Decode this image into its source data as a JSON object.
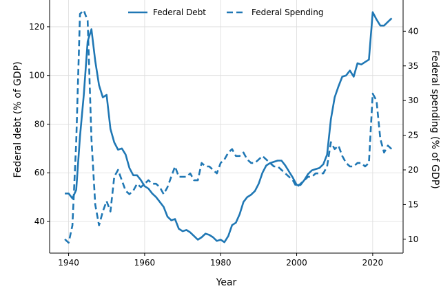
{
  "chart_data": {
    "type": "line",
    "xlabel": "Year",
    "ylabel_left": "Federal debt (% of GDP)",
    "ylabel_right": "Federal spending (% of GDP)",
    "xlim": [
      1935,
      2028
    ],
    "ylim_left": [
      27,
      131
    ],
    "ylim_right": [
      8,
      44.5
    ],
    "xticks": [
      1940,
      1960,
      1980,
      2000,
      2020
    ],
    "yticks_left": [
      40,
      60,
      80,
      100,
      120
    ],
    "yticks_right": [
      10,
      15,
      20,
      25,
      30,
      35,
      40
    ],
    "grid": true,
    "legend": "top-center",
    "series": [
      {
        "name": "Federal Debt",
        "axis": "left",
        "style": "solid",
        "color": "#1f77b4",
        "x": [
          1939,
          1940,
          1941,
          1942,
          1943,
          1944,
          1945,
          1946,
          1947,
          1948,
          1949,
          1950,
          1951,
          1952,
          1953,
          1954,
          1955,
          1956,
          1957,
          1958,
          1959,
          1960,
          1961,
          1962,
          1963,
          1964,
          1965,
          1966,
          1967,
          1968,
          1969,
          1970,
          1971,
          1972,
          1973,
          1974,
          1975,
          1976,
          1977,
          1978,
          1979,
          1980,
          1981,
          1982,
          1983,
          1984,
          1985,
          1986,
          1987,
          1988,
          1989,
          1990,
          1991,
          1992,
          1993,
          1994,
          1995,
          1996,
          1997,
          1998,
          1999,
          2000,
          2001,
          2002,
          2003,
          2004,
          2005,
          2006,
          2007,
          2008,
          2009,
          2010,
          2011,
          2012,
          2013,
          2014,
          2015,
          2016,
          2017,
          2018,
          2019,
          2020,
          2021,
          2022,
          2023,
          2024,
          2025
        ],
        "values": [
          51.5,
          51.5,
          49.5,
          53,
          75,
          92,
          114,
          119,
          106,
          96,
          91,
          92,
          78,
          72.5,
          69.5,
          70,
          67.5,
          62,
          59,
          59,
          57,
          54.5,
          53.5,
          51.5,
          50,
          48,
          46,
          42,
          40.5,
          41,
          37,
          36,
          36.5,
          35.5,
          34,
          32.5,
          33.5,
          35,
          34.5,
          33.5,
          32,
          32.5,
          31.5,
          34,
          38.5,
          39.5,
          43,
          48,
          50,
          51,
          52.5,
          55.5,
          60,
          63,
          64,
          64.5,
          65,
          65,
          63,
          60.5,
          58,
          55,
          55,
          57,
          59.5,
          61,
          61.5,
          62,
          63.5,
          67.5,
          82,
          91,
          95.5,
          99.5,
          100,
          102,
          99.5,
          105,
          104.5,
          105.5,
          106.5,
          126,
          123,
          120.5,
          120.5,
          122,
          123.5
        ]
      },
      {
        "name": "Federal Spending",
        "axis": "right",
        "style": "dashed",
        "color": "#1f77b4",
        "x": [
          1939,
          1940,
          1941,
          1942,
          1943,
          1944,
          1945,
          1946,
          1947,
          1948,
          1949,
          1950,
          1951,
          1952,
          1953,
          1954,
          1955,
          1956,
          1957,
          1958,
          1959,
          1960,
          1961,
          1962,
          1963,
          1964,
          1965,
          1966,
          1967,
          1968,
          1969,
          1970,
          1971,
          1972,
          1973,
          1974,
          1975,
          1976,
          1977,
          1978,
          1979,
          1980,
          1981,
          1982,
          1983,
          1984,
          1985,
          1986,
          1987,
          1988,
          1989,
          1990,
          1991,
          1992,
          1993,
          1994,
          1995,
          1996,
          1997,
          1998,
          1999,
          2000,
          2001,
          2002,
          2003,
          2004,
          2005,
          2006,
          2007,
          2008,
          2009,
          2010,
          2011,
          2012,
          2013,
          2014,
          2015,
          2016,
          2017,
          2018,
          2019,
          2020,
          2021,
          2022,
          2023,
          2024,
          2025
        ],
        "values": [
          10,
          9.5,
          12,
          24,
          42.5,
          43,
          41.5,
          24.5,
          15,
          12,
          14,
          15.5,
          14,
          19,
          20,
          18.5,
          17,
          16.5,
          17,
          18,
          17.5,
          18,
          18.5,
          18,
          18,
          17.5,
          16.5,
          17.5,
          19,
          20.5,
          19,
          19,
          19,
          19.5,
          18.5,
          18.5,
          21,
          20.5,
          20.5,
          20,
          19.5,
          21,
          21.5,
          22.5,
          23,
          22,
          22,
          22.5,
          21.5,
          21,
          21,
          21.5,
          22,
          21.5,
          21,
          20.5,
          20.5,
          20,
          19.5,
          19,
          18.5,
          17.5,
          18,
          18.5,
          19,
          19,
          19.5,
          19.5,
          19.5,
          20.5,
          24,
          23,
          23.5,
          22,
          21,
          20.5,
          20.5,
          21,
          21,
          20.5,
          21,
          31,
          30,
          24.5,
          22.5,
          23.5,
          23
        ]
      }
    ]
  }
}
